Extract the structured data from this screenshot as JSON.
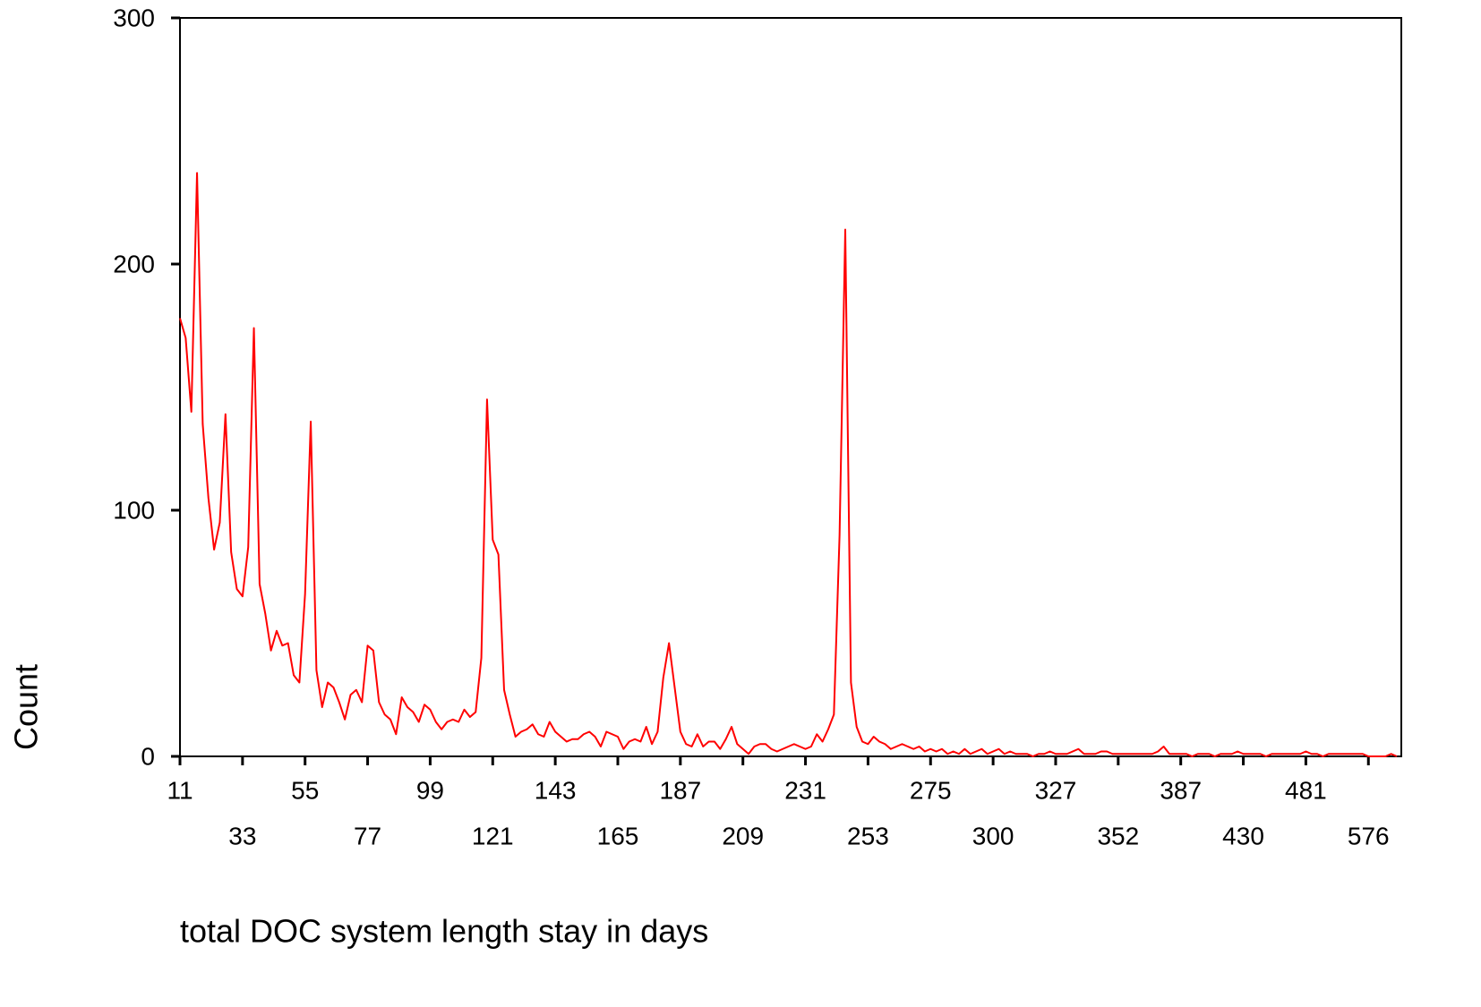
{
  "chart_data": {
    "type": "line",
    "x_label": "total DOC system length stay in days",
    "y_label": "Count",
    "categories": [
      "11",
      null,
      null,
      null,
      null,
      null,
      null,
      null,
      null,
      null,
      null,
      "33",
      null,
      null,
      null,
      null,
      null,
      null,
      null,
      null,
      null,
      null,
      "55",
      null,
      null,
      null,
      null,
      null,
      null,
      null,
      null,
      null,
      null,
      "77",
      null,
      null,
      null,
      null,
      null,
      null,
      null,
      null,
      null,
      null,
      "99",
      null,
      null,
      null,
      null,
      null,
      null,
      null,
      null,
      null,
      null,
      "121",
      null,
      null,
      null,
      null,
      null,
      null,
      null,
      null,
      null,
      null,
      "143",
      null,
      null,
      null,
      null,
      null,
      null,
      null,
      null,
      null,
      null,
      "165",
      null,
      null,
      null,
      null,
      null,
      null,
      null,
      null,
      null,
      null,
      "187",
      null,
      null,
      null,
      null,
      null,
      null,
      null,
      null,
      null,
      null,
      "209",
      null,
      null,
      null,
      null,
      null,
      null,
      null,
      null,
      null,
      null,
      "231",
      null,
      null,
      null,
      null,
      null,
      null,
      null,
      null,
      null,
      null,
      "253",
      null,
      null,
      null,
      null,
      null,
      null,
      null,
      null,
      null,
      null,
      "275",
      null,
      null,
      null,
      null,
      null,
      null,
      null,
      null,
      null,
      null,
      "300",
      null,
      null,
      null,
      null,
      null,
      null,
      null,
      null,
      null,
      null,
      "327",
      null,
      null,
      null,
      null,
      null,
      null,
      null,
      null,
      null,
      null,
      "352",
      null,
      null,
      null,
      null,
      null,
      null,
      null,
      null,
      null,
      null,
      "387",
      null,
      null,
      null,
      null,
      null,
      null,
      null,
      null,
      null,
      null,
      "430",
      null,
      null,
      null,
      null,
      null,
      null,
      null,
      null,
      null,
      null,
      "481",
      null,
      null,
      null,
      null,
      null,
      null,
      null,
      null,
      null,
      null,
      "576",
      null,
      null,
      null,
      null,
      null
    ],
    "series": [
      {
        "color": "#ff0000",
        "values": [
          178,
          170,
          140,
          237,
          135,
          105,
          84,
          95,
          139,
          83,
          68,
          65,
          85,
          174,
          70,
          58,
          43,
          51,
          45,
          46,
          33,
          30,
          66,
          136,
          35,
          20,
          30,
          28,
          22,
          15,
          25,
          27,
          22,
          45,
          43,
          22,
          17,
          15,
          9,
          24,
          20,
          18,
          14,
          21,
          19,
          14,
          11,
          14,
          15,
          14,
          19,
          16,
          18,
          40,
          145,
          88,
          82,
          27,
          17,
          8,
          10,
          11,
          13,
          9,
          8,
          14,
          10,
          8,
          6,
          7,
          7,
          9,
          10,
          8,
          4,
          10,
          9,
          8,
          3,
          6,
          7,
          6,
          12,
          5,
          10,
          32,
          46,
          28,
          10,
          5,
          4,
          9,
          4,
          6,
          6,
          3,
          7,
          12,
          5,
          3,
          1,
          4,
          5,
          5,
          3,
          2,
          3,
          4,
          5,
          4,
          3,
          4,
          9,
          6,
          11,
          17,
          90,
          214,
          30,
          12,
          6,
          5,
          8,
          6,
          5,
          3,
          4,
          5,
          4,
          3,
          4,
          2,
          3,
          2,
          3,
          1,
          2,
          1,
          3,
          1,
          2,
          3,
          1,
          2,
          3,
          1,
          2,
          1,
          1,
          1,
          0,
          1,
          1,
          2,
          1,
          1,
          1,
          2,
          3,
          1,
          1,
          1,
          2,
          2,
          1,
          1,
          1,
          1,
          1,
          1,
          1,
          1,
          2,
          4,
          1,
          1,
          1,
          1,
          0,
          1,
          1,
          1,
          0,
          1,
          1,
          1,
          2,
          1,
          1,
          1,
          1,
          0,
          1,
          1,
          1,
          1,
          1,
          1,
          2,
          1,
          1,
          0,
          1,
          1,
          1,
          1,
          1,
          1,
          1,
          0,
          0,
          0,
          0,
          1,
          0
        ]
      }
    ],
    "ylim": [
      0,
      300
    ],
    "yticks": [
      0,
      100,
      200,
      300
    ]
  }
}
